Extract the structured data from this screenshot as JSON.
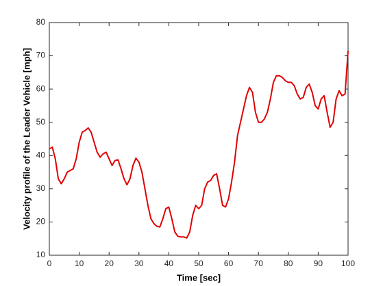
{
  "chart_data": {
    "type": "line",
    "x_label": "Time [sec]",
    "y_label": "Velocity profile of the Leader Vehicle [mph]",
    "x": [
      0,
      1,
      2,
      3,
      4,
      5,
      6,
      7,
      8,
      9,
      10,
      11,
      12,
      13,
      14,
      15,
      16,
      17,
      18,
      19,
      20,
      21,
      22,
      23,
      24,
      25,
      26,
      27,
      28,
      29,
      30,
      31,
      32,
      33,
      34,
      35,
      36,
      37,
      38,
      39,
      40,
      41,
      42,
      43,
      44,
      45,
      46,
      47,
      48,
      49,
      50,
      51,
      52,
      53,
      54,
      55,
      56,
      57,
      58,
      59,
      60,
      61,
      62,
      63,
      64,
      65,
      66,
      67,
      68,
      69,
      70,
      71,
      72,
      73,
      74,
      75,
      76,
      77,
      78,
      79,
      80,
      81,
      82,
      83,
      84,
      85,
      86,
      87,
      88,
      89,
      90,
      91,
      92,
      93,
      94,
      95,
      96,
      97,
      98,
      99,
      100
    ],
    "series": [
      {
        "name": "Velocity",
        "color": "#e00000",
        "values": [
          42,
          42.5,
          39,
          33,
          31.5,
          33,
          35,
          35.5,
          36,
          39,
          44,
          47,
          47.5,
          48.3,
          47,
          44,
          41,
          39.5,
          40.5,
          41,
          39,
          37,
          38.5,
          38.7,
          36,
          33,
          31.2,
          33,
          37,
          39.2,
          38,
          35,
          30,
          25,
          21,
          19.5,
          18.7,
          18.5,
          21,
          24,
          24.5,
          21,
          17,
          15.7,
          15.5,
          15.5,
          15.2,
          17,
          22,
          25,
          24,
          25,
          30,
          32,
          32.5,
          34,
          34.5,
          30,
          25,
          24.5,
          27,
          32,
          38,
          46,
          50,
          54,
          58,
          60.5,
          59,
          53,
          50,
          50,
          51,
          53,
          57,
          62,
          64,
          64,
          63.5,
          62.5,
          62,
          62,
          61,
          58.5,
          57,
          57.5,
          60.5,
          61.5,
          59,
          55,
          54,
          57,
          58,
          53,
          48.5,
          50,
          57,
          59.5,
          58,
          58.5,
          71.5
        ]
      }
    ],
    "xlim": [
      0,
      100
    ],
    "xticks": [
      0,
      10,
      20,
      30,
      40,
      50,
      60,
      70,
      80,
      90,
      100
    ],
    "ylim": [
      10,
      80
    ],
    "yticks": [
      10,
      20,
      30,
      40,
      50,
      60,
      70,
      80
    ]
  }
}
